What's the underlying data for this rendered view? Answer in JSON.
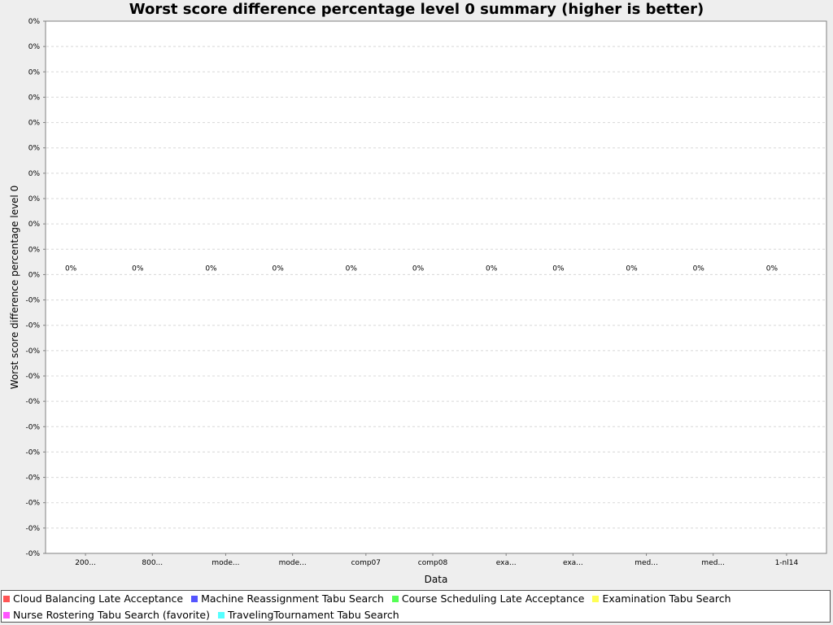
{
  "chart_data": {
    "type": "bar",
    "title": "Worst score difference percentage level 0 summary (higher is better)",
    "xlabel": "Data",
    "ylabel": "Worst score difference percentage level 0",
    "y_tick_labels": [
      "0%",
      "0%",
      "0%",
      "0%",
      "0%",
      "0%",
      "0%",
      "0%",
      "0%",
      "0%",
      "0%",
      "-0%",
      "-0%",
      "-0%",
      "-0%",
      "-0%",
      "-0%",
      "-0%",
      "-0%",
      "-0%",
      "-0%",
      "-0%"
    ],
    "categories": [
      "200...",
      "800...",
      "mode...",
      "mode...",
      "comp07",
      "comp08",
      "exa...",
      "exa...",
      "med...",
      "med...",
      "1-nl14"
    ],
    "category_series": [
      0,
      0,
      1,
      1,
      2,
      2,
      3,
      3,
      4,
      4,
      5
    ],
    "values": [
      0,
      0,
      0,
      0,
      0,
      0,
      0,
      0,
      0,
      0,
      0
    ],
    "value_labels": [
      "0%",
      "0%",
      "0%",
      "0%",
      "0%",
      "0%",
      "0%",
      "0%",
      "0%",
      "0%",
      "0%"
    ],
    "series": [
      {
        "name": "Cloud Balancing Late Acceptance",
        "color": "#ff5555"
      },
      {
        "name": "Machine Reassignment Tabu Search",
        "color": "#5555ff"
      },
      {
        "name": "Course Scheduling Late Acceptance",
        "color": "#55ff55"
      },
      {
        "name": "Examination Tabu Search",
        "color": "#ffff55"
      },
      {
        "name": "Nurse Rostering Tabu Search (favorite)",
        "color": "#ff55ff"
      },
      {
        "name": "TravelingTournament Tabu Search",
        "color": "#55ffff"
      }
    ],
    "grid": true,
    "legend_position": "bottom"
  }
}
